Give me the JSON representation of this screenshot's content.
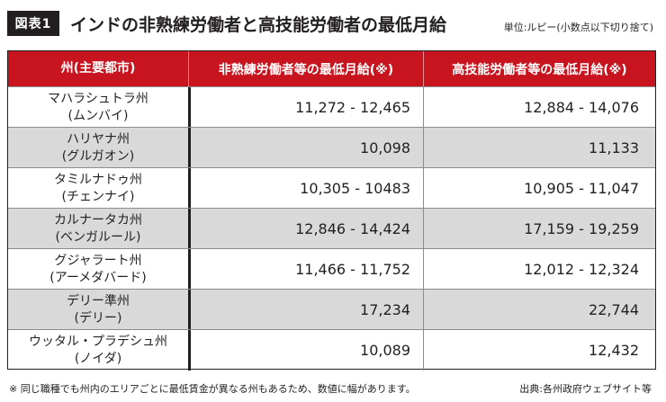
{
  "header": {
    "figure_label": "図表1",
    "title": "インドの非熟練労働者と高技能労働者の最低月給",
    "unit_note": "単位:ルピー(小数点以下切り捨て)"
  },
  "table": {
    "columns": [
      "州(主要都市)",
      "非熟練労働者等の最低月給(※)",
      "高技能労働者等の最低月給(※)"
    ],
    "rows": [
      {
        "state": "マハラシュトラ州",
        "city": "(ムンバイ)",
        "unskilled": "11,272 - 12,465",
        "skilled": "12,884 - 14,076"
      },
      {
        "state": "ハリヤナ州",
        "city": "(グルガオン)",
        "unskilled": "10,098",
        "skilled": "11,133"
      },
      {
        "state": "タミルナドゥ州",
        "city": "(チェンナイ)",
        "unskilled": "10,305 - 10483",
        "skilled": "10,905 - 11,047"
      },
      {
        "state": "カルナータカ州",
        "city": "(ベンガルール)",
        "unskilled": "12,846 - 14,424",
        "skilled": "17,159 - 19,259"
      },
      {
        "state": "グジャラート州",
        "city": "(アーメダバード)",
        "unskilled": "11,466 - 11,752",
        "skilled": "12,012 - 12,324"
      },
      {
        "state": "デリー準州",
        "city": "(デリー)",
        "unskilled": "17,234",
        "skilled": "22,744"
      },
      {
        "state": "ウッタル・プラデシュ州",
        "city": "(ノイダ)",
        "unskilled": "10,089",
        "skilled": "12,432"
      }
    ]
  },
  "footer": {
    "note": "※ 同じ職種でも州内のエリアごとに最低賃金が異なる州もあるため、数値に幅があります。",
    "source": "出典:各州政府ウェブサイト等"
  },
  "colors": {
    "header_bg": "#c8141e",
    "alt_row_bg": "#d9d9d9",
    "text": "#231f20"
  }
}
